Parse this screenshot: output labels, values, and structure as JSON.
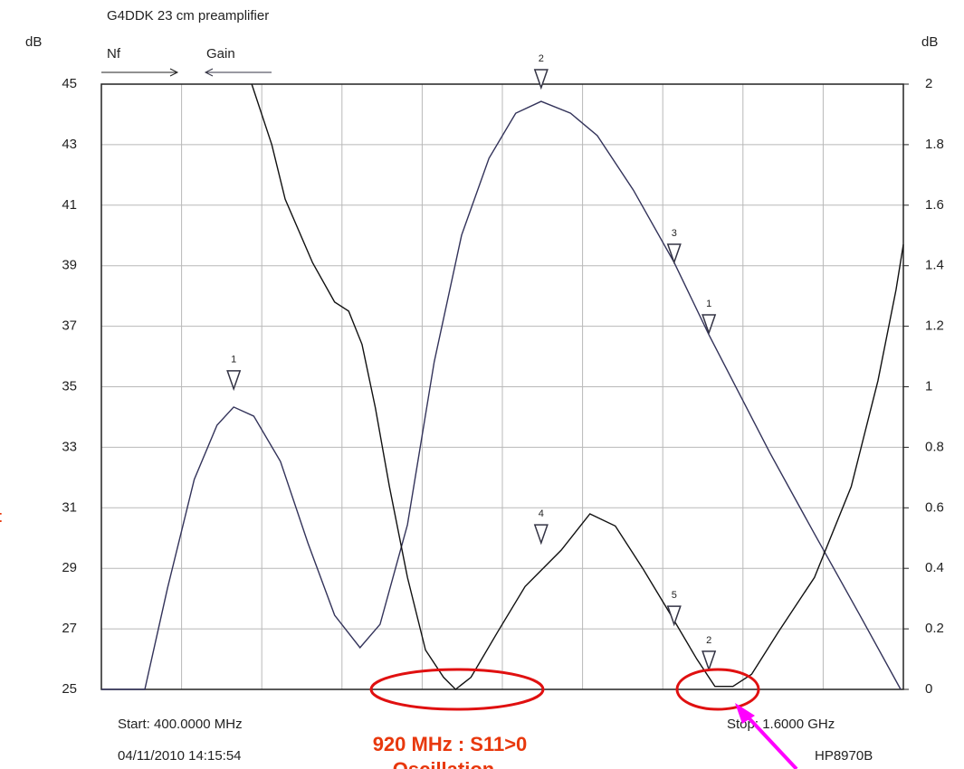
{
  "chart_data": {
    "type": "line",
    "title": "G4DDK 23 cm preamplifier",
    "ylabel": "dB",
    "y2label": "dB",
    "legend_labels": [
      "Nf",
      "Gain"
    ],
    "xlim": [
      400,
      1600
    ],
    "xticks": [
      400,
      520,
      640,
      760,
      880,
      1000,
      1120,
      1240,
      1360,
      1480,
      1600
    ],
    "ylim": [
      25,
      45
    ],
    "yticks": [
      45,
      43,
      41,
      39,
      37,
      35,
      33,
      31,
      29,
      27,
      25
    ],
    "y2lim": [
      0,
      2
    ],
    "y2ticks": [
      2,
      1.8,
      1.6,
      1.4,
      1.2,
      1,
      0.8,
      0.6,
      0.4,
      0.2,
      0
    ],
    "grid": true,
    "series": [
      {
        "color": "#33335a",
        "x": [
          400,
          465,
          499,
          539,
          573,
          598,
          628,
          668,
          709,
          749,
          787,
          817,
          858,
          898,
          939,
          980,
          1020,
          1058,
          1102,
          1142,
          1196,
          1257,
          1309,
          1400,
          1467,
          1535,
          1596
        ],
        "values": [
          25,
          25,
          28.35,
          31.94,
          33.73,
          34.33,
          34.03,
          32.53,
          29.84,
          27.45,
          26.38,
          27.15,
          30.44,
          35.82,
          40.01,
          42.55,
          44.04,
          44.43,
          44.04,
          43.3,
          41.5,
          39.11,
          36.72,
          32.83,
          30.14,
          27.45,
          25
        ]
      },
      {
        "color": "#111111",
        "axis": "y2",
        "x": [
          625,
          655,
          675,
          716,
          749,
          770,
          790,
          810,
          831,
          858,
          885,
          912,
          930,
          953,
          993,
          1034,
          1088,
          1131,
          1169,
          1210,
          1251,
          1291,
          1318,
          1345,
          1373,
          1413,
          1467,
          1522,
          1562,
          1589,
          1600
        ],
        "values": [
          2,
          1.8,
          1.62,
          1.41,
          1.28,
          1.25,
          1.14,
          0.93,
          0.67,
          0.37,
          0.13,
          0.04,
          0,
          0.04,
          0.19,
          0.34,
          0.46,
          0.58,
          0.54,
          0.4,
          0.25,
          0.1,
          0.01,
          0.01,
          0.05,
          0.19,
          0.37,
          0.67,
          1.02,
          1.32,
          1.47
        ]
      }
    ],
    "markers": [
      {
        "label": "1",
        "x": 598,
        "y": 34.93
      },
      {
        "label": "2",
        "x": 1058,
        "y": 44.88
      },
      {
        "label": "3",
        "x": 1257,
        "y": 39.11
      },
      {
        "label": "1",
        "x": 1309,
        "y": 36.78
      },
      {
        "label": "4",
        "x": 1058,
        "y": 29.84
      },
      {
        "label": "5",
        "x": 1257,
        "y": 27.15
      },
      {
        "label": "2",
        "x": 1309,
        "y": 25.66
      }
    ],
    "start_label": "Start: 400.0000 MHz",
    "stop_label": "Stop: 1.6000 GHz",
    "timestamp": "04/11/2010 14:15:54",
    "instrument": "HP8970B",
    "annotations": [
      "920 MHz : S11>0",
      "Oscillation",
      "t"
    ]
  }
}
